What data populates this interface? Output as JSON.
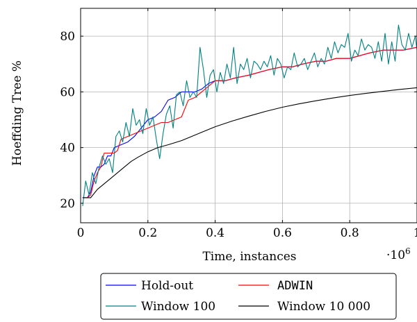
{
  "chart_data": {
    "type": "line",
    "xlabel": "Time, instances",
    "ylabel": "Hoeffding Tree %",
    "x_scale_note": "·10^6",
    "x_scale_base": "·10",
    "x_scale_exp": "6",
    "xlim": [
      0,
      1
    ],
    "ylim": [
      13,
      90
    ],
    "grid": true,
    "legend_position": "bottom-center, below plot",
    "xticks": [
      0,
      0.2,
      0.4,
      0.6,
      0.8,
      1
    ],
    "xtick_labels": [
      "0",
      "0.2",
      "0.4",
      "0.6",
      "0.8",
      "1"
    ],
    "yticks": [
      20,
      40,
      60,
      80
    ],
    "ytick_labels": [
      "20",
      "40",
      "60",
      "80"
    ],
    "series": [
      {
        "name": "Hold-out",
        "color": "#0000ff",
        "mono": false,
        "x": [
          0.006,
          0.02,
          0.03,
          0.04,
          0.05,
          0.06,
          0.07,
          0.08,
          0.09,
          0.1,
          0.12,
          0.14,
          0.16,
          0.18,
          0.2,
          0.22,
          0.24,
          0.26,
          0.28,
          0.3,
          0.32,
          0.34,
          0.36,
          0.38,
          0.4,
          0.43,
          0.46,
          0.5,
          0.53,
          0.56,
          0.6,
          0.63,
          0.66,
          0.7,
          0.73,
          0.76,
          0.8,
          0.83,
          0.86,
          0.9,
          0.93,
          0.96,
          1.0
        ],
        "y": [
          22,
          22,
          24,
          30,
          33,
          33,
          34,
          37,
          37,
          40,
          41,
          42,
          44,
          47,
          50,
          51,
          53,
          57,
          58,
          60,
          60,
          60,
          61,
          63,
          64,
          64,
          65,
          66,
          67,
          68,
          69,
          69,
          70,
          71,
          71,
          72,
          72,
          73,
          74,
          75,
          75,
          75,
          76
        ]
      },
      {
        "name": "ADWIN",
        "color": "#ff0000",
        "mono": true,
        "x": [
          0.006,
          0.02,
          0.03,
          0.04,
          0.05,
          0.06,
          0.07,
          0.09,
          0.1,
          0.11,
          0.12,
          0.14,
          0.16,
          0.18,
          0.2,
          0.22,
          0.24,
          0.26,
          0.28,
          0.3,
          0.31,
          0.32,
          0.34,
          0.36,
          0.38,
          0.4,
          0.43,
          0.46,
          0.5,
          0.53,
          0.56,
          0.6,
          0.63,
          0.66,
          0.7,
          0.73,
          0.76,
          0.8,
          0.83,
          0.86,
          0.9,
          0.93,
          0.96,
          1.0
        ],
        "y": [
          22,
          22,
          23,
          28,
          31,
          33,
          38,
          38,
          38,
          39,
          43,
          44,
          45,
          46,
          47,
          48,
          49,
          49,
          50,
          51,
          54,
          57,
          58,
          60,
          62,
          64,
          64,
          65,
          66,
          67,
          68,
          69,
          69,
          70,
          71,
          71,
          72,
          72,
          73,
          74,
          75,
          75,
          75,
          76
        ]
      },
      {
        "name": "Window 100",
        "color": "#008080",
        "mono": false,
        "x": [
          0.006,
          0.015,
          0.025,
          0.035,
          0.045,
          0.055,
          0.065,
          0.075,
          0.085,
          0.095,
          0.105,
          0.115,
          0.125,
          0.135,
          0.145,
          0.155,
          0.165,
          0.175,
          0.185,
          0.195,
          0.205,
          0.215,
          0.225,
          0.235,
          0.245,
          0.255,
          0.265,
          0.275,
          0.285,
          0.295,
          0.305,
          0.315,
          0.325,
          0.335,
          0.345,
          0.355,
          0.365,
          0.375,
          0.385,
          0.395,
          0.405,
          0.415,
          0.425,
          0.435,
          0.445,
          0.455,
          0.465,
          0.475,
          0.485,
          0.495,
          0.505,
          0.515,
          0.525,
          0.535,
          0.545,
          0.555,
          0.565,
          0.575,
          0.585,
          0.595,
          0.605,
          0.615,
          0.625,
          0.635,
          0.645,
          0.655,
          0.665,
          0.675,
          0.685,
          0.695,
          0.705,
          0.715,
          0.725,
          0.735,
          0.745,
          0.755,
          0.765,
          0.775,
          0.785,
          0.795,
          0.805,
          0.815,
          0.825,
          0.835,
          0.845,
          0.855,
          0.865,
          0.875,
          0.885,
          0.895,
          0.905,
          0.915,
          0.925,
          0.935,
          0.945,
          0.955,
          0.965,
          0.975,
          0.985,
          0.995,
          1.0
        ],
        "y": [
          19,
          28,
          23,
          31,
          27,
          33,
          37,
          34,
          36,
          31,
          44,
          46,
          42,
          49,
          44,
          54,
          48,
          50,
          45,
          54,
          48,
          51,
          43,
          36,
          45,
          52,
          55,
          47,
          59,
          60,
          55,
          64,
          58,
          60,
          58,
          76,
          68,
          58,
          66,
          68,
          60,
          67,
          63,
          70,
          65,
          76,
          63,
          70,
          68,
          72,
          65,
          71,
          70,
          68,
          71,
          69,
          73,
          66,
          72,
          70,
          65,
          69,
          68,
          74,
          69,
          70,
          72,
          68,
          71,
          74,
          69,
          72,
          70,
          76,
          72,
          78,
          74,
          77,
          76,
          81,
          71,
          75,
          73,
          79,
          75,
          77,
          76,
          72,
          78,
          71,
          81,
          70,
          78,
          71,
          84,
          77,
          75,
          81,
          76,
          80,
          75
        ]
      },
      {
        "name": "Window 10 000",
        "color": "#000000",
        "mono": false,
        "x": [
          0.006,
          0.02,
          0.03,
          0.05,
          0.07,
          0.09,
          0.11,
          0.13,
          0.15,
          0.17,
          0.2,
          0.23,
          0.26,
          0.3,
          0.33,
          0.36,
          0.4,
          0.45,
          0.5,
          0.55,
          0.6,
          0.65,
          0.7,
          0.75,
          0.8,
          0.85,
          0.9,
          0.95,
          1.0
        ],
        "y": [
          22,
          22,
          22,
          25,
          27,
          29,
          31,
          33,
          35,
          36.5,
          38.5,
          40,
          41,
          42.5,
          44,
          45.5,
          47.5,
          49.5,
          51.3,
          53,
          54.5,
          55.7,
          56.8,
          57.8,
          58.7,
          59.5,
          60.2,
          60.9,
          61.5
        ]
      }
    ]
  }
}
